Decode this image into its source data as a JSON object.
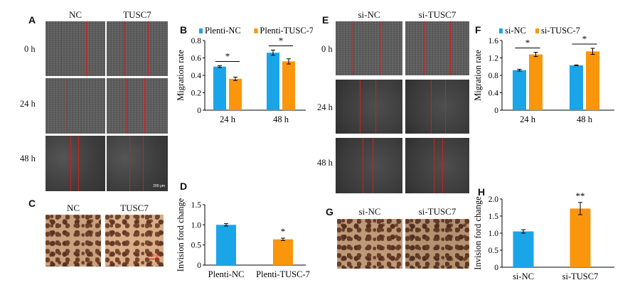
{
  "panels": {
    "A": "A",
    "B": "B",
    "C": "C",
    "D": "D",
    "E": "E",
    "F": "F",
    "G": "G",
    "H": "H"
  },
  "panel_A": {
    "col1": "NC",
    "col2": "TUSC7",
    "rows": [
      "0 h",
      "24 h",
      "48 h"
    ],
    "scalebar": "200 μm"
  },
  "panel_E": {
    "col1": "si-NC",
    "col2": "si-TUSC7",
    "rows": [
      "0 h",
      "24 h",
      "48 h"
    ]
  },
  "panel_C": {
    "col1": "NC",
    "col2": "TUSC7",
    "scalebar": "100 μm"
  },
  "panel_G": {
    "col1": "si-NC",
    "col2": "si-TUSC7"
  },
  "colors": {
    "blue": "#1aa5e8",
    "orange": "#f9960c"
  },
  "chart_data": [
    {
      "panel": "B",
      "type": "bar",
      "ylabel": "Migration rate",
      "categories": [
        "24 h",
        "48 h"
      ],
      "series": [
        {
          "name": "Plenti-NC",
          "values": [
            0.5,
            0.66
          ],
          "errors": [
            0.01,
            0.03
          ]
        },
        {
          "name": "Plenti-TUSC-7",
          "values": [
            0.36,
            0.56
          ],
          "errors": [
            0.02,
            0.03
          ]
        }
      ],
      "ylim": [
        0,
        0.8
      ],
      "yticks": [
        "0",
        "0.2",
        "0.4",
        "0.6",
        "0.8"
      ],
      "significance": [
        "*",
        "*"
      ],
      "legend": "top"
    },
    {
      "panel": "D",
      "type": "bar",
      "ylabel": "Invision ford change",
      "categories": [
        "Plenti-NC",
        "Plenti-TUSC-7"
      ],
      "values": [
        1.0,
        0.64
      ],
      "errors": [
        0.03,
        0.03
      ],
      "ylim": [
        0,
        1.5
      ],
      "yticks": [
        "0",
        "0.5",
        "1.0",
        "1.5"
      ],
      "significance": [
        "",
        "*"
      ]
    },
    {
      "panel": "F",
      "type": "bar",
      "ylabel": "Migration rate",
      "categories": [
        "24 h",
        "48 h"
      ],
      "series": [
        {
          "name": "si-NC",
          "values": [
            0.92,
            1.03
          ],
          "errors": [
            0.02,
            0.01
          ]
        },
        {
          "name": "si-TUSC-7",
          "values": [
            1.28,
            1.35
          ],
          "errors": [
            0.05,
            0.07
          ]
        }
      ],
      "ylim": [
        0,
        1.6
      ],
      "yticks": [
        "0",
        "0.4",
        "0.8",
        "1.2",
        "1.6"
      ],
      "significance": [
        "*",
        "*"
      ],
      "legend": "top"
    },
    {
      "panel": "H",
      "type": "bar",
      "ylabel": "Invision ford change",
      "categories": [
        "si-NC",
        "si-TUSC7"
      ],
      "values": [
        1.05,
        1.72
      ],
      "errors": [
        0.05,
        0.18
      ],
      "ylim": [
        0,
        2.0
      ],
      "yticks": [
        "0",
        "0.5",
        "1.0",
        "1.5",
        "2.0"
      ],
      "significance": [
        "",
        "**"
      ]
    }
  ]
}
